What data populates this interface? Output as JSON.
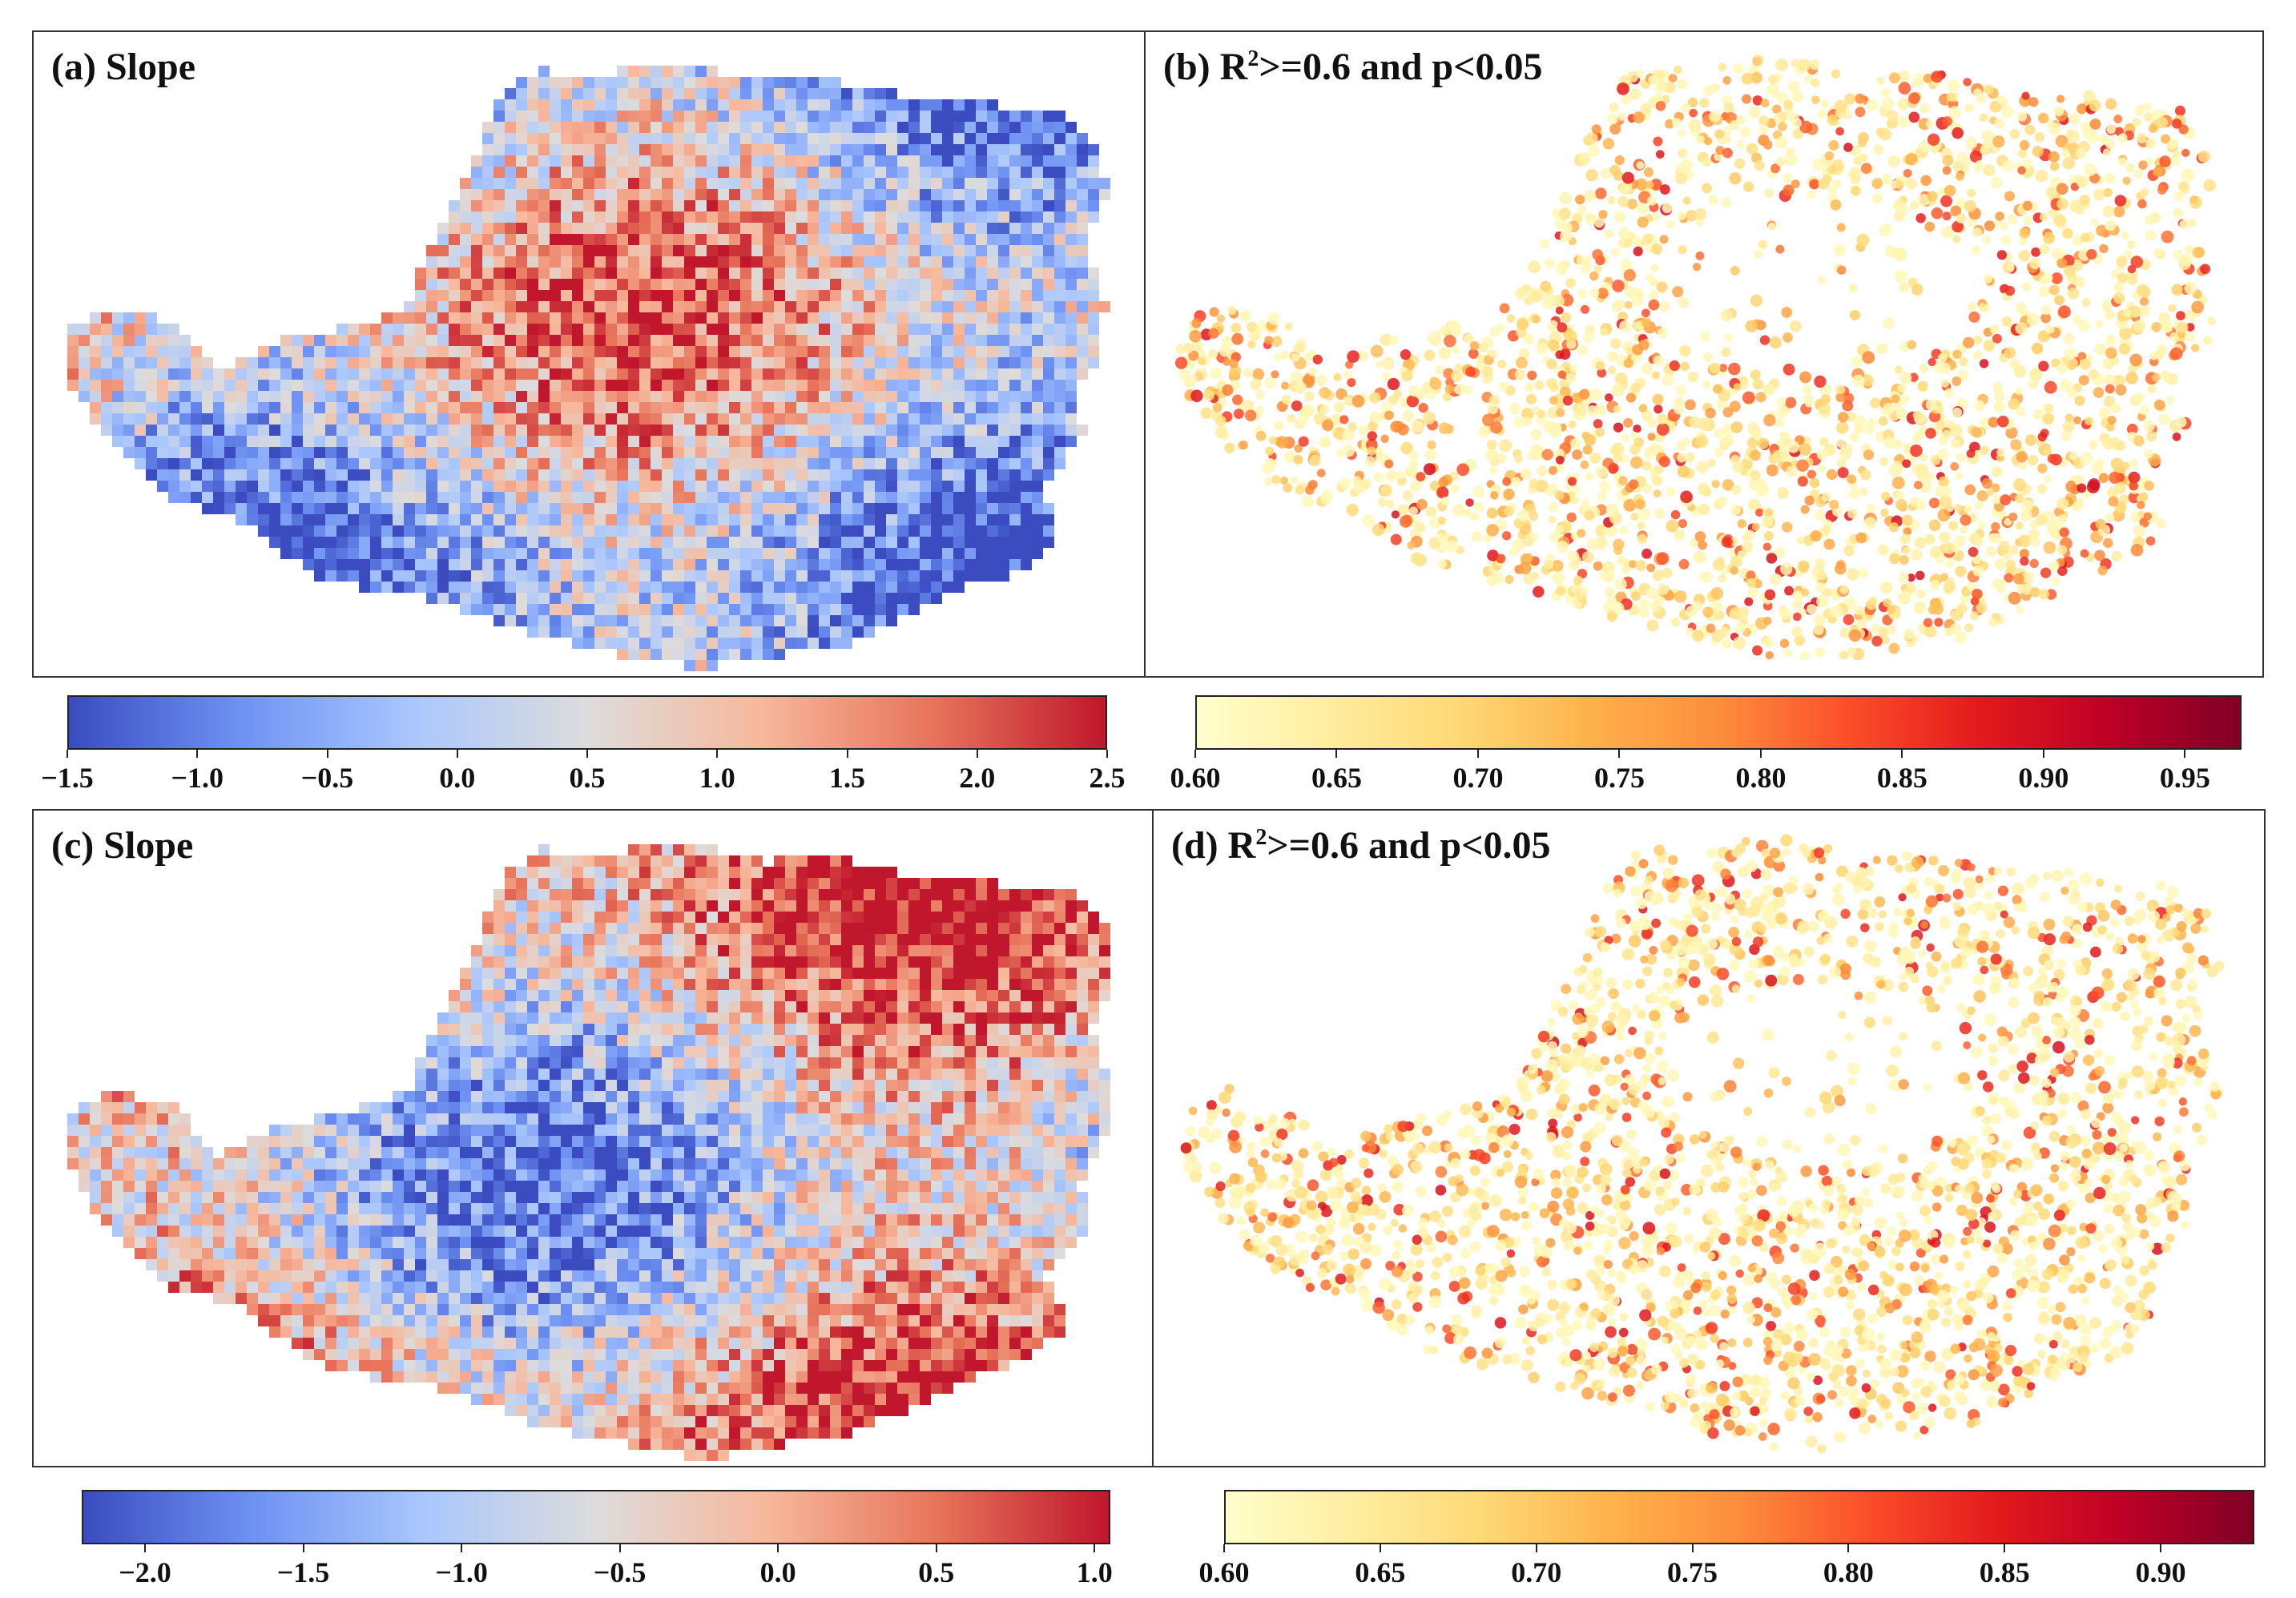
{
  "panels": [
    {
      "id": "a",
      "title": "(a) Slope",
      "kind": "slope"
    },
    {
      "id": "b",
      "title_prefix": "(b) R",
      "title_sup": "2",
      "title_suffix": ">=0.6 and p<0.05",
      "kind": "r2"
    },
    {
      "id": "c",
      "title": "(c) Slope",
      "kind": "slope"
    },
    {
      "id": "d",
      "title_prefix": "(d) R",
      "title_sup": "2",
      "title_suffix": ">=0.6 and p<0.05",
      "kind": "r2"
    }
  ],
  "colorbars": [
    {
      "id": "cbar-a",
      "range": [
        -1.5,
        2.5
      ],
      "ticks": [
        "−1.5",
        "−1.0",
        "−0.5",
        "0.0",
        "0.5",
        "1.0",
        "1.5",
        "2.0",
        "2.5"
      ],
      "tick_values": [
        -1.5,
        -1.0,
        -0.5,
        0.0,
        0.5,
        1.0,
        1.5,
        2.0,
        2.5
      ],
      "colormap": "coolwarm"
    },
    {
      "id": "cbar-b",
      "range": [
        0.6,
        0.97
      ],
      "ticks": [
        "0.60",
        "0.65",
        "0.70",
        "0.75",
        "0.80",
        "0.85",
        "0.90",
        "0.95"
      ],
      "tick_values": [
        0.6,
        0.65,
        0.7,
        0.75,
        0.8,
        0.85,
        0.9,
        0.95
      ],
      "colormap": "YlOrRd"
    },
    {
      "id": "cbar-c",
      "range": [
        -2.2,
        1.05
      ],
      "ticks": [
        "−2.0",
        "−1.5",
        "−1.0",
        "−0.5",
        "0.0",
        "0.5",
        "1.0"
      ],
      "tick_values": [
        -2.0,
        -1.5,
        -1.0,
        -0.5,
        0.0,
        0.5,
        1.0
      ],
      "colormap": "coolwarm"
    },
    {
      "id": "cbar-d",
      "range": [
        0.6,
        0.93
      ],
      "ticks": [
        "0.60",
        "0.65",
        "0.70",
        "0.75",
        "0.80",
        "0.85",
        "0.90"
      ],
      "tick_values": [
        0.6,
        0.65,
        0.7,
        0.75,
        0.8,
        0.85,
        0.9
      ],
      "colormap": "YlOrRd"
    }
  ],
  "colors": {
    "coolwarm": [
      "#3a4cc0",
      "#6f92f3",
      "#aac7fd",
      "#dddcdc",
      "#f7b89c",
      "#e7745b",
      "#c0172c"
    ],
    "ylorrd": [
      "#ffffcc",
      "#ffeda0",
      "#fed976",
      "#feb24c",
      "#fd8d3c",
      "#fc4e2a",
      "#e31a1c",
      "#bd0026",
      "#800026"
    ]
  }
}
